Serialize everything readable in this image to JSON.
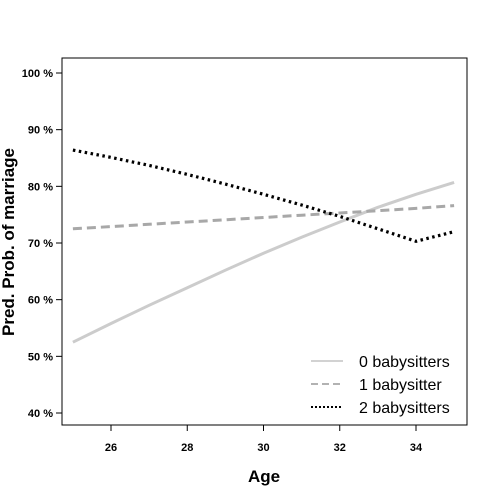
{
  "chart_data": {
    "type": "line",
    "xlabel": "Age",
    "ylabel": "Pred. Prob. of marriage",
    "xlim": [
      24.7,
      35.6
    ],
    "ylim": [
      0.38,
      1.02
    ],
    "x_ticks": [
      26,
      28,
      30,
      32,
      34
    ],
    "y_ticks": [
      0.4,
      0.5,
      0.6,
      0.7,
      0.8,
      0.9,
      1.0
    ],
    "y_tick_labels": [
      "40 %",
      "50 %",
      "60 %",
      "70 %",
      "80 %",
      "90 %",
      "100 %"
    ],
    "x_tick_labels": [
      "26",
      "28",
      "30",
      "32",
      "34"
    ],
    "legend_position": "bottom-right",
    "grid": false,
    "series": [
      {
        "name": "0 babysitters",
        "color": "#cccccc",
        "dash": "solid",
        "x": [
          25,
          26,
          27,
          28,
          29,
          30,
          31,
          32,
          33,
          34,
          35
        ],
        "y": [
          0.525,
          0.558,
          0.59,
          0.621,
          0.652,
          0.682,
          0.71,
          0.737,
          0.763,
          0.786,
          0.807
        ]
      },
      {
        "name": "1 babysitter",
        "color": "#a8a8a8",
        "dash": "dashed",
        "x": [
          25,
          26,
          27,
          28,
          29,
          30,
          31,
          32,
          33,
          34,
          35
        ],
        "y": [
          0.725,
          0.729,
          0.733,
          0.737,
          0.741,
          0.745,
          0.749,
          0.753,
          0.757,
          0.761,
          0.766
        ]
      },
      {
        "name": "2 babysitters",
        "color": "#000000",
        "dash": "dotted",
        "x": [
          25,
          26,
          27,
          28,
          29,
          30,
          31,
          32,
          33,
          34,
          35
        ],
        "y": [
          0.864,
          0.851,
          0.837,
          0.821,
          0.804,
          0.786,
          0.767,
          0.747,
          0.725,
          0.703,
          0.72
        ]
      }
    ]
  }
}
